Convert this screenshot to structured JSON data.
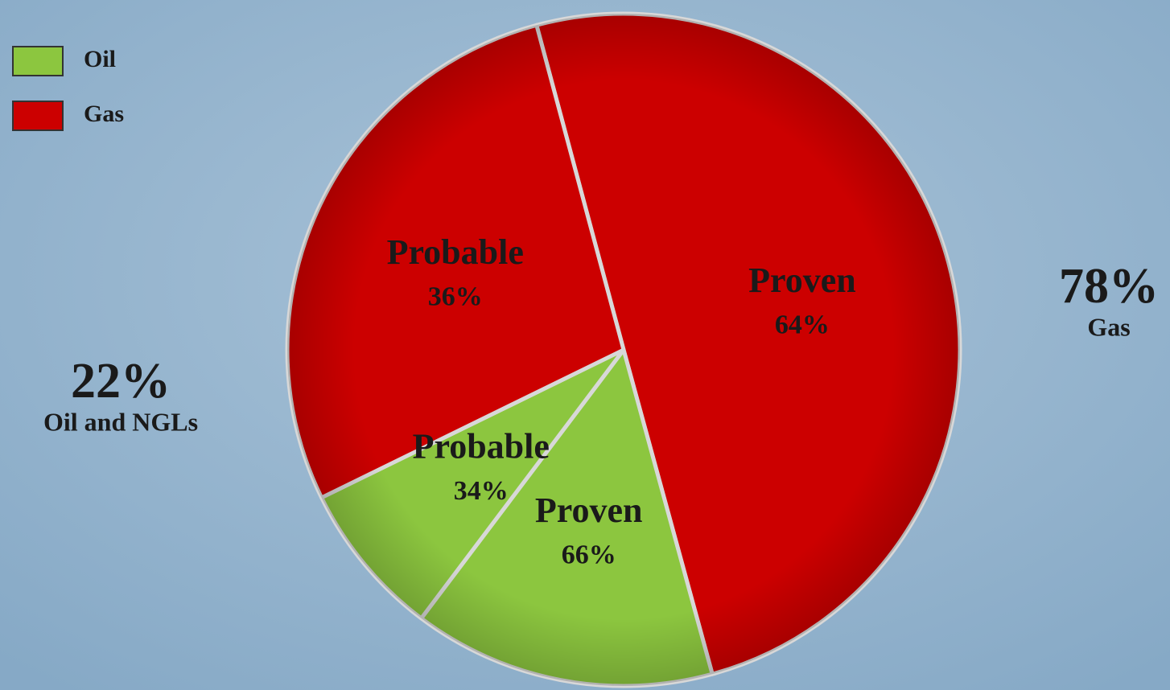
{
  "chart_data": {
    "type": "pie",
    "groups": [
      {
        "name": "Oil",
        "color": "#8cc63f",
        "value": 22,
        "value_label": "22%",
        "label": "Oil and NGLs",
        "parts": [
          {
            "name": "Proven",
            "value": 66,
            "value_label": "66%"
          },
          {
            "name": "Probable",
            "value": 34,
            "value_label": "34%"
          }
        ]
      },
      {
        "name": "Gas",
        "color": "#cc0000",
        "value": 78,
        "value_label": "78%",
        "label": "Gas",
        "parts": [
          {
            "name": "Proven",
            "value": 64,
            "value_label": "64%"
          },
          {
            "name": "Probable",
            "value": 36,
            "value_label": "36%"
          }
        ]
      }
    ]
  }
}
